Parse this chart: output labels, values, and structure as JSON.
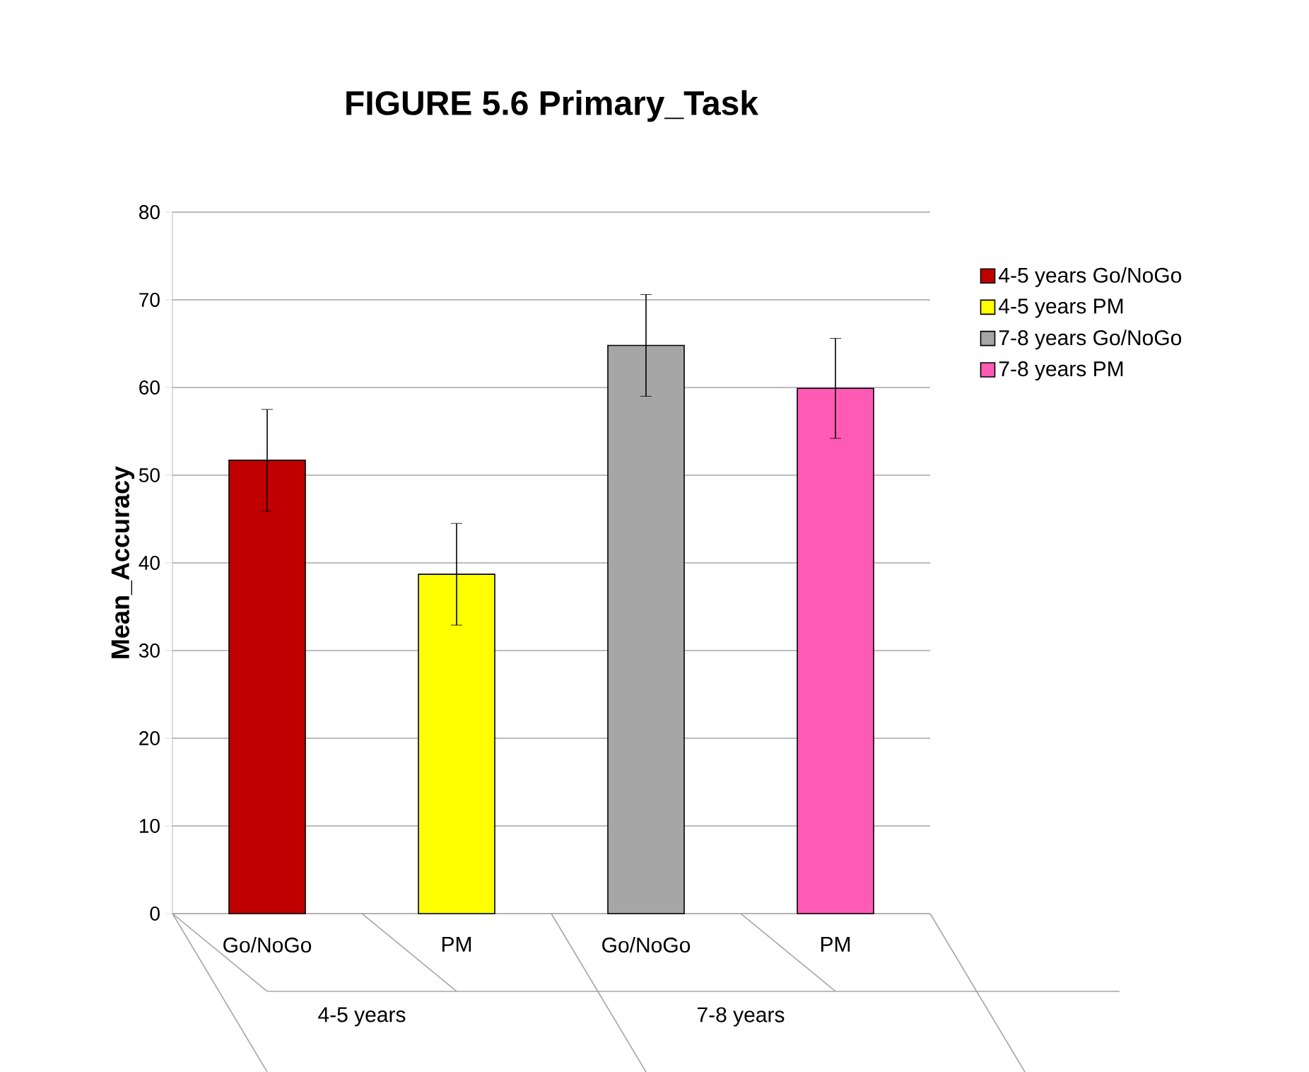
{
  "chart_data": {
    "type": "bar",
    "title": "FIGURE 5.6  Primary_Task",
    "ylabel": "Mean_Accuracy",
    "categories": [
      "Go/NoGo",
      "PM",
      "Go/NoGo",
      "PM"
    ],
    "annotations": [
      "4-5 years",
      "7-8 years"
    ],
    "series": [
      {
        "name": "4-5 years Go/NoGo",
        "color": "#c00000",
        "values": [
          51.7,
          null,
          null,
          null
        ],
        "errors": [
          5.8,
          null,
          null,
          null
        ]
      },
      {
        "name": "4-5 years PM",
        "color": "#ffff00",
        "values": [
          null,
          38.7,
          null,
          null
        ],
        "errors": [
          null,
          5.8,
          null,
          null
        ]
      },
      {
        "name": "7-8 years Go/NoGo",
        "color": "#a6a6a6",
        "values": [
          null,
          null,
          64.8,
          null
        ],
        "errors": [
          null,
          null,
          5.8,
          null
        ]
      },
      {
        "name": "7-8 years PM",
        "color": "#ff5bb5",
        "values": [
          null,
          null,
          null,
          59.9
        ],
        "errors": [
          null,
          null,
          null,
          5.7
        ]
      }
    ],
    "ylim": [
      0,
      80
    ],
    "yticks": [
      0,
      10,
      20,
      30,
      40,
      50,
      60,
      70,
      80
    ],
    "grid": "y",
    "legend": "right"
  }
}
